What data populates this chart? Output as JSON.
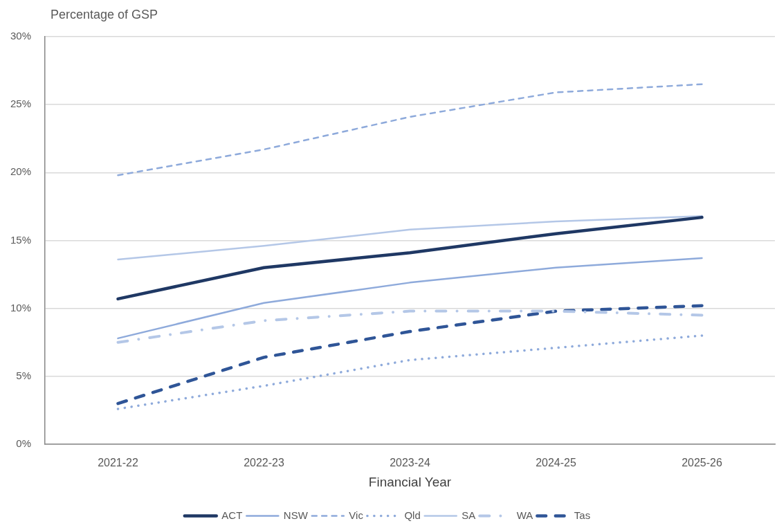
{
  "chart_data": {
    "type": "line",
    "ylabel": "Percentage of GSP",
    "xlabel": "Financial Year",
    "categories": [
      "2021-22",
      "2022-23",
      "2023-24",
      "2024-25",
      "2025-26"
    ],
    "series": [
      {
        "name": "ACT",
        "color": "#1f3864",
        "line_style": "solid",
        "values": [
          10.7,
          13.0,
          14.1,
          15.5,
          16.7
        ]
      },
      {
        "name": "NSW",
        "color": "#8eaadb",
        "line_style": "solid",
        "values": [
          7.8,
          10.4,
          11.9,
          13.0,
          13.7
        ]
      },
      {
        "name": "Vic",
        "color": "#8eaadb",
        "line_style": "dashed",
        "values": [
          19.8,
          21.7,
          24.1,
          25.9,
          26.5
        ]
      },
      {
        "name": "Qld",
        "color": "#8eaadb",
        "line_style": "dotted",
        "values": [
          2.6,
          4.3,
          6.2,
          7.1,
          8.0
        ]
      },
      {
        "name": "SA",
        "color": "#b4c7e7",
        "line_style": "solid",
        "values": [
          13.6,
          14.6,
          15.8,
          16.4,
          16.8
        ]
      },
      {
        "name": "WA",
        "color": "#b4c7e7",
        "line_style": "dashdot",
        "values": [
          7.5,
          9.1,
          9.8,
          9.8,
          9.5
        ]
      },
      {
        "name": "Tas",
        "color": "#2f5597",
        "line_style": "dashed",
        "values": [
          3.0,
          6.4,
          8.3,
          9.8,
          10.2
        ]
      }
    ],
    "ylim": [
      0,
      30
    ],
    "yticks": [
      {
        "value": 0,
        "label": "0%"
      },
      {
        "value": 5,
        "label": "5%"
      },
      {
        "value": 10,
        "label": "10%"
      },
      {
        "value": 15,
        "label": "15%"
      },
      {
        "value": 20,
        "label": "20%"
      },
      {
        "value": 25,
        "label": "25%"
      },
      {
        "value": 30,
        "label": "30%"
      }
    ],
    "grid": "y",
    "legend": "bottom",
    "marker": "none"
  }
}
